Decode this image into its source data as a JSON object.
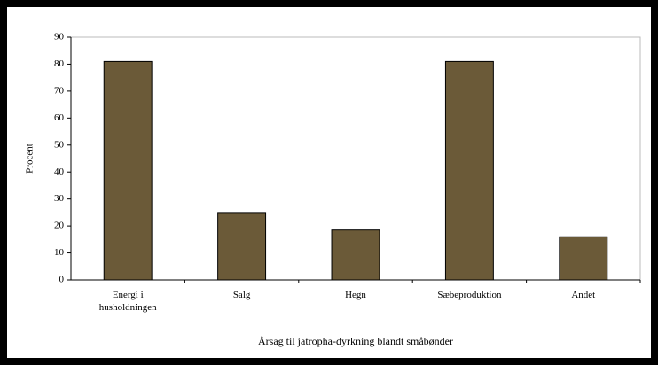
{
  "chart_data": {
    "type": "bar",
    "x_label": "Årsag til jatropha-dyrkning blandt småbønder",
    "y_label": "Procent",
    "categories": [
      "Energi i husholdningen",
      "Salg",
      "Hegn",
      "Sæbeproduktion",
      "Andet"
    ],
    "values": [
      81,
      25,
      18.5,
      81,
      16
    ],
    "color": "#6b5a38",
    "ylim": [
      0,
      90
    ],
    "yticks": [
      0,
      10,
      20,
      30,
      40,
      50,
      60,
      70,
      80,
      90
    ],
    "grid": false
  }
}
